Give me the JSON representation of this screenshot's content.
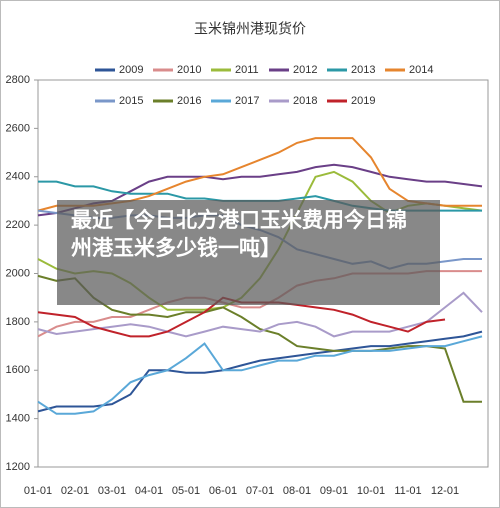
{
  "chart_data": {
    "type": "line",
    "title": "玉米锦州港现货价",
    "categories": [
      "01-01",
      null,
      "02-01",
      null,
      "03-01",
      null,
      "04-01",
      null,
      "05-01",
      null,
      "06-01",
      null,
      "07-01",
      null,
      "08-01",
      null,
      "09-01",
      null,
      "10-01",
      null,
      "11-01",
      null,
      "12-01",
      null,
      null
    ],
    "ylim": [
      1200,
      2800
    ],
    "yticks": [
      1200,
      1400,
      1600,
      1800,
      2000,
      2200,
      2400,
      2600,
      2800
    ],
    "series": [
      {
        "name": "2009",
        "color": "#2e5597",
        "values": [
          1430,
          1450,
          1450,
          1450,
          1460,
          1500,
          1600,
          1600,
          1590,
          1590,
          1600,
          1620,
          1640,
          1650,
          1660,
          1670,
          1680,
          1690,
          1700,
          1700,
          1710,
          1720,
          1730,
          1740,
          1760
        ]
      },
      {
        "name": "2010",
        "color": "#d98c8c",
        "values": [
          1740,
          1780,
          1800,
          1800,
          1820,
          1820,
          1850,
          1880,
          1900,
          1900,
          1880,
          1860,
          1860,
          1900,
          1950,
          1970,
          1980,
          2000,
          2000,
          2000,
          2000,
          2010,
          2010,
          2010,
          2010
        ]
      },
      {
        "name": "2011",
        "color": "#9bbb3b",
        "values": [
          2060,
          2020,
          2000,
          2010,
          2000,
          1960,
          1900,
          1850,
          1850,
          1850,
          1860,
          1900,
          1980,
          2100,
          2250,
          2400,
          2420,
          2380,
          2300,
          2250,
          2280,
          2290,
          2280,
          2270,
          2260
        ]
      },
      {
        "name": "2012",
        "color": "#6a3f87",
        "values": [
          2240,
          2250,
          2270,
          2290,
          2300,
          2340,
          2380,
          2400,
          2400,
          2400,
          2390,
          2400,
          2400,
          2410,
          2420,
          2440,
          2450,
          2440,
          2420,
          2400,
          2390,
          2380,
          2380,
          2370,
          2360
        ]
      },
      {
        "name": "2013",
        "color": "#2b98a6",
        "values": [
          2380,
          2380,
          2360,
          2360,
          2340,
          2330,
          2330,
          2330,
          2310,
          2310,
          2300,
          2300,
          2300,
          2300,
          2310,
          2320,
          2300,
          2280,
          2270,
          2260,
          2260,
          2260,
          2260,
          2260,
          2260
        ]
      },
      {
        "name": "2014",
        "color": "#e6852e",
        "values": [
          2260,
          2280,
          2280,
          2280,
          2290,
          2300,
          2320,
          2350,
          2380,
          2400,
          2410,
          2440,
          2470,
          2500,
          2540,
          2560,
          2560,
          2560,
          2480,
          2350,
          2300,
          2290,
          2280,
          2280,
          2280
        ]
      },
      {
        "name": "2015",
        "color": "#7a97c9",
        "values": [
          2260,
          2250,
          2240,
          2230,
          2230,
          2240,
          2240,
          2230,
          2230,
          2240,
          2240,
          2200,
          2180,
          2150,
          2100,
          2080,
          2060,
          2040,
          2050,
          2020,
          2040,
          2040,
          2050,
          2060,
          2060
        ]
      },
      {
        "name": "2016",
        "color": "#6b7f2a",
        "values": [
          1990,
          1970,
          1980,
          1900,
          1850,
          1830,
          1830,
          1820,
          1840,
          1840,
          1860,
          1820,
          1770,
          1750,
          1700,
          1690,
          1680,
          1680,
          1680,
          1690,
          1700,
          1700,
          1690,
          1470,
          1470
        ]
      },
      {
        "name": "2017",
        "color": "#5aa8d8",
        "values": [
          1470,
          1420,
          1420,
          1430,
          1480,
          1550,
          1580,
          1600,
          1650,
          1710,
          1600,
          1600,
          1620,
          1640,
          1640,
          1660,
          1660,
          1680,
          1680,
          1680,
          1690,
          1700,
          1700,
          1720,
          1740
        ]
      },
      {
        "name": "2018",
        "color": "#a99bc9",
        "values": [
          1770,
          1750,
          1760,
          1770,
          1780,
          1790,
          1780,
          1760,
          1740,
          1760,
          1780,
          1770,
          1760,
          1790,
          1800,
          1780,
          1740,
          1760,
          1760,
          1760,
          1780,
          1800,
          1860,
          1920,
          1840
        ]
      },
      {
        "name": "2019",
        "color": "#c0222a",
        "values": [
          1840,
          1830,
          1820,
          1780,
          1760,
          1740,
          1740,
          1760,
          1800,
          1840,
          1900,
          1880,
          1880,
          1880,
          1870,
          1860,
          1850,
          1830,
          1800,
          1780,
          1760,
          1800,
          1810,
          null,
          null
        ]
      }
    ]
  },
  "overlay": {
    "text": "最近【今日北方港口玉米费用今日锦州港玉米多少钱一吨】"
  }
}
